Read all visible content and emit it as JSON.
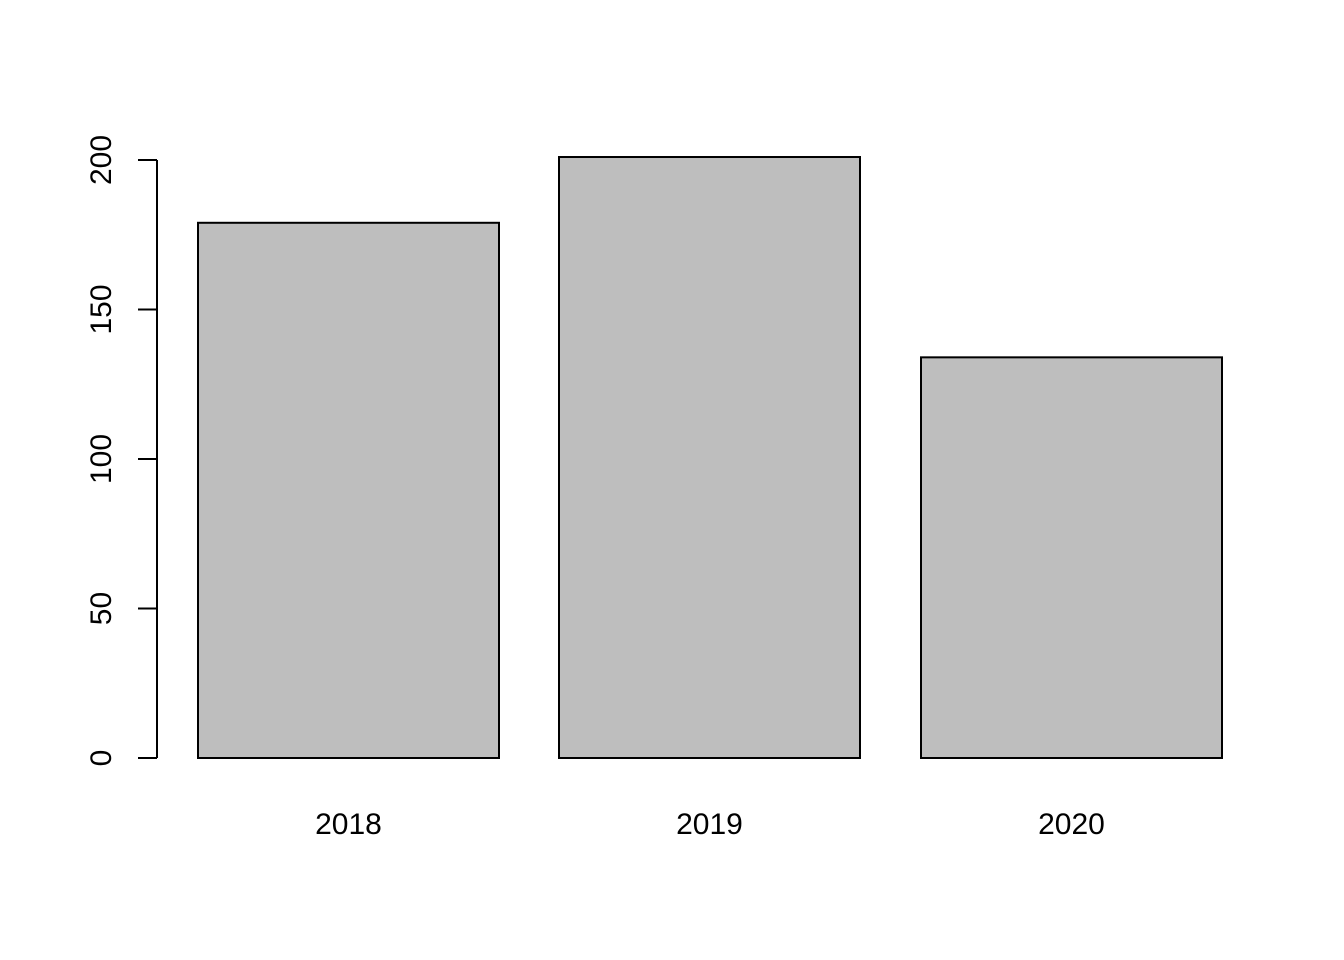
{
  "chart_data": {
    "type": "bar",
    "title": "",
    "xlabel": "",
    "ylabel": "",
    "categories": [
      "2018",
      "2019",
      "2020"
    ],
    "values": [
      179,
      201,
      134
    ],
    "ylim": [
      0,
      200
    ],
    "yticks": [
      0,
      50,
      100,
      150,
      200
    ],
    "ytick_labels": [
      "0",
      "50",
      "100",
      "150",
      "200"
    ],
    "grid": false,
    "legend": "none",
    "colors": {
      "bar_fill": "#bebebe",
      "bar_stroke": "#000000",
      "axis": "#000000",
      "background": "#ffffff"
    }
  }
}
